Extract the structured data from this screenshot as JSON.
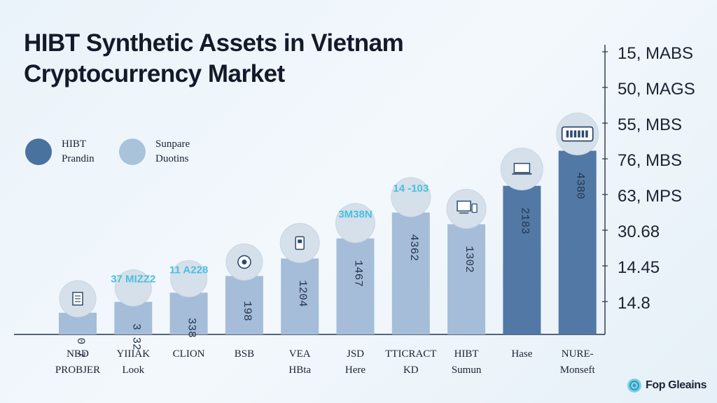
{
  "chart_data": {
    "type": "bar",
    "title": [
      "HIBT Synthetic Assets in Vietnam",
      "Cryptocurrency Market"
    ],
    "categories": [
      [
        "NBD",
        "PROBJER"
      ],
      [
        "YIIIAK",
        "Look"
      ],
      [
        "CLION"
      ],
      [
        "BSB"
      ],
      [
        "VEA",
        "HBta"
      ],
      [
        "JSD",
        "Here"
      ],
      [
        "TTICRACT",
        "KD"
      ],
      [
        "HIBT",
        "Sumun"
      ],
      [
        "Hase"
      ],
      [
        "NURE-",
        "Monseft"
      ]
    ],
    "values": [
      2.6,
      3.9,
      5.0,
      7.0,
      9.1,
      11.5,
      14.6,
      13.2,
      17.8,
      22.0
    ],
    "ylim": [
      0,
      30
    ],
    "bar_labels": [
      "0 7",
      "3 32",
      "338",
      "198",
      "1204",
      "1467",
      "4362",
      "1302",
      "2183",
      "4380"
    ],
    "above_labels": [
      "",
      "37 MIZZ2",
      "11 A228",
      "",
      "",
      "3M38N",
      "14 -103",
      "",
      "",
      ""
    ],
    "right_axis_labels": [
      "15, MABS",
      "50, MAGS",
      "55, MBS",
      "76, MBS",
      "63, MPS",
      "30.68",
      "14.45",
      "14.8"
    ],
    "legend": [
      {
        "label": [
          "HIBT",
          "Prandin"
        ],
        "color": "#49729f"
      },
      {
        "label": [
          "Sunpare",
          "Duotins"
        ],
        "color": "#a9c3db"
      }
    ],
    "grid": false,
    "colors": {
      "dark_bar": "#5279a5",
      "light_bar": "#a5bdd8",
      "bubble": "#d5e0ea",
      "accent": "#4bbfdf"
    },
    "icons": [
      "document-icon",
      "",
      "",
      "settings-icon",
      "tablet-icon",
      "",
      "",
      "monitor-icon",
      "laptop-icon",
      "server-icon"
    ]
  },
  "brand": {
    "name": "Fop Gleains"
  }
}
